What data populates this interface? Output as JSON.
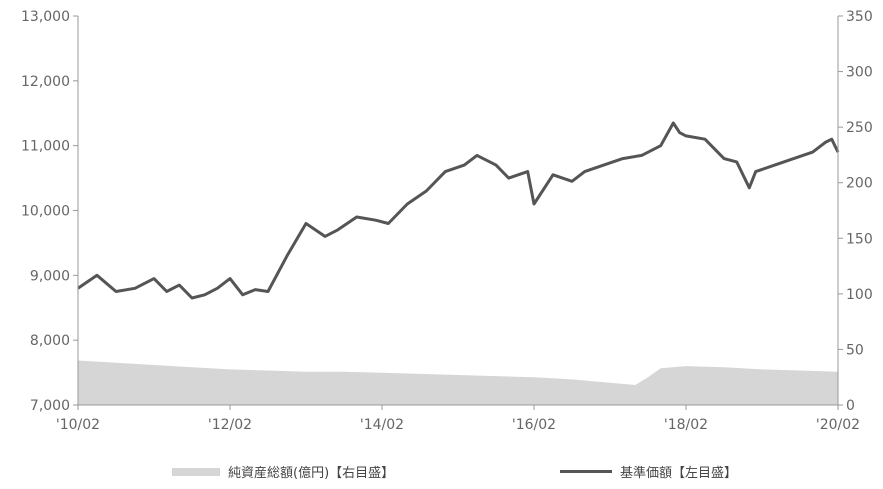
{
  "chart_data": {
    "type": "line",
    "title": "",
    "colors": {
      "line": "#555555",
      "area": "#d6d6d6",
      "axis": "#999999",
      "text": "#666666"
    },
    "x_axis": {
      "ticks": [
        "'10/02",
        "'12/02",
        "'14/02",
        "'16/02",
        "'18/02",
        "'20/02"
      ],
      "range": [
        "2010-02",
        "2020-02"
      ]
    },
    "y_left": {
      "label": "",
      "ylim": [
        7000,
        13000
      ],
      "ticks": [
        "7,000",
        "8,000",
        "9,000",
        "10,000",
        "11,000",
        "12,000",
        "13,000"
      ]
    },
    "y_right": {
      "label": "",
      "ylim": [
        0,
        350
      ],
      "ticks": [
        "0",
        "50",
        "100",
        "150",
        "200",
        "250",
        "300",
        "350"
      ]
    },
    "grid": false,
    "legend_position": "bottom",
    "series": [
      {
        "name": "純資産総額(億円)【右目盛】",
        "type": "area",
        "axis": "right",
        "x": [
          "2010-02",
          "2010-08",
          "2011-02",
          "2011-08",
          "2012-02",
          "2012-08",
          "2013-02",
          "2013-08",
          "2014-02",
          "2014-08",
          "2015-02",
          "2015-08",
          "2016-02",
          "2016-08",
          "2017-02",
          "2017-06",
          "2017-08",
          "2017-10",
          "2018-02",
          "2018-08",
          "2019-02",
          "2019-08",
          "2020-02"
        ],
        "values": [
          40,
          38,
          36,
          34,
          32,
          31,
          30,
          30,
          29,
          28,
          27,
          26,
          25,
          23,
          20,
          18,
          25,
          33,
          35,
          34,
          32,
          31,
          30
        ]
      },
      {
        "name": "基準価額【左目盛】",
        "type": "line",
        "axis": "left",
        "x": [
          "2010-02",
          "2010-05",
          "2010-08",
          "2010-11",
          "2011-02",
          "2011-04",
          "2011-06",
          "2011-08",
          "2011-10",
          "2011-12",
          "2012-02",
          "2012-04",
          "2012-06",
          "2012-08",
          "2012-11",
          "2013-02",
          "2013-05",
          "2013-07",
          "2013-10",
          "2014-01",
          "2014-03",
          "2014-06",
          "2014-09",
          "2014-12",
          "2015-03",
          "2015-05",
          "2015-08",
          "2015-10",
          "2016-01",
          "2016-02",
          "2016-05",
          "2016-08",
          "2016-10",
          "2017-01",
          "2017-04",
          "2017-07",
          "2017-10",
          "2017-12",
          "2018-01",
          "2018-02",
          "2018-05",
          "2018-08",
          "2018-10",
          "2018-12",
          "2019-01",
          "2019-04",
          "2019-07",
          "2019-10",
          "2019-12",
          "2020-01",
          "2020-02"
        ],
        "values": [
          8800,
          9000,
          8750,
          8800,
          8950,
          8750,
          8850,
          8650,
          8700,
          8800,
          8950,
          8700,
          8780,
          8750,
          9300,
          9800,
          9600,
          9700,
          9900,
          9850,
          9800,
          10100,
          10300,
          10600,
          10700,
          10850,
          10700,
          10500,
          10600,
          10100,
          10550,
          10450,
          10600,
          10700,
          10800,
          10850,
          11000,
          11350,
          11200,
          11150,
          11100,
          10800,
          10750,
          10350,
          10600,
          10700,
          10800,
          10900,
          11050,
          11100,
          10900
        ]
      }
    ],
    "legend": [
      {
        "label": "純資産総額(億円)【右目盛】",
        "kind": "area"
      },
      {
        "label": "基準価額【左目盛】",
        "kind": "line"
      }
    ]
  }
}
